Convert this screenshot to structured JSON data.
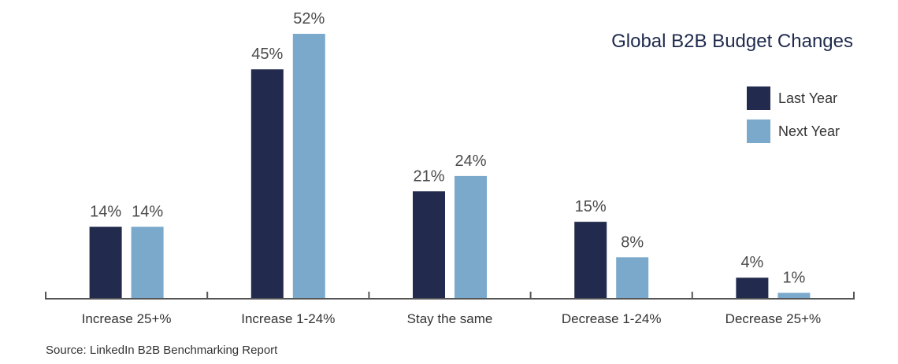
{
  "chart_data": {
    "type": "bar",
    "title": "Global B2B Budget Changes",
    "categories": [
      "Increase 25+%",
      "Increase 1-24%",
      "Stay the same",
      "Decrease 1-24%",
      "Decrease 25+%"
    ],
    "series": [
      {
        "name": "Last Year",
        "color": "#222b4d",
        "values": [
          14,
          45,
          21,
          15,
          4
        ]
      },
      {
        "name": "Next Year",
        "color": "#7aa9cc",
        "values": [
          14,
          52,
          24,
          8,
          1
        ]
      }
    ],
    "value_suffix": "%",
    "ylim": [
      0,
      52
    ],
    "grid": false,
    "legend": "top-right",
    "source": "Source: LinkedIn B2B Benchmarking Report"
  }
}
